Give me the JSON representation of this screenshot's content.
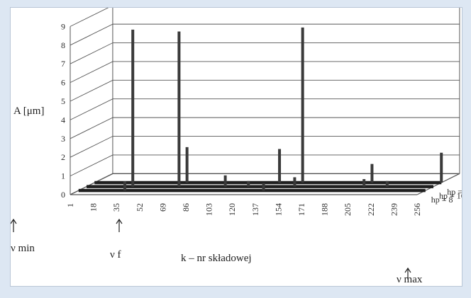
{
  "chart_data": {
    "type": "bar",
    "ylabel": "A [μm]",
    "xlabel": "k –  nr składowej",
    "ylim": [
      0,
      9
    ],
    "y_ticks": [
      "0",
      "1",
      "2",
      "3",
      "4",
      "5",
      "6",
      "7",
      "8",
      "9"
    ],
    "categories": [
      "1",
      "18",
      "35",
      "52",
      "69",
      "86",
      "103",
      "120",
      "137",
      "154",
      "171",
      "188",
      "205",
      "222",
      "239",
      "256"
    ],
    "series": [
      {
        "name": "hp = 8",
        "points": [
          {
            "k": 35,
            "v": 0.5
          },
          {
            "k": 137,
            "v": 0.4
          }
        ]
      },
      {
        "name": "hp = 16",
        "points": [
          {
            "k": 35,
            "v": 8.4
          },
          {
            "k": 69,
            "v": 8.3
          },
          {
            "k": 103,
            "v": 0.6
          },
          {
            "k": 120,
            "v": 0.3
          },
          {
            "k": 154,
            "v": 0.5
          },
          {
            "k": 205,
            "v": 0.4
          },
          {
            "k": 222,
            "v": 0.3
          }
        ]
      },
      {
        "name": "hp = 32",
        "points": [
          {
            "k": 69,
            "v": 1.9
          },
          {
            "k": 137,
            "v": 1.8
          },
          {
            "k": 154,
            "v": 8.3
          },
          {
            "k": 205,
            "v": 1.0
          },
          {
            "k": 256,
            "v": 1.6
          }
        ]
      }
    ],
    "annotations": {
      "nu_min": "ν min",
      "nu_f": "ν f",
      "nu_max": "ν max"
    },
    "grid": true,
    "colors": {
      "bars": "#3a3a3a",
      "grid": "#555555",
      "frame_bg": "#dde7f3"
    }
  }
}
